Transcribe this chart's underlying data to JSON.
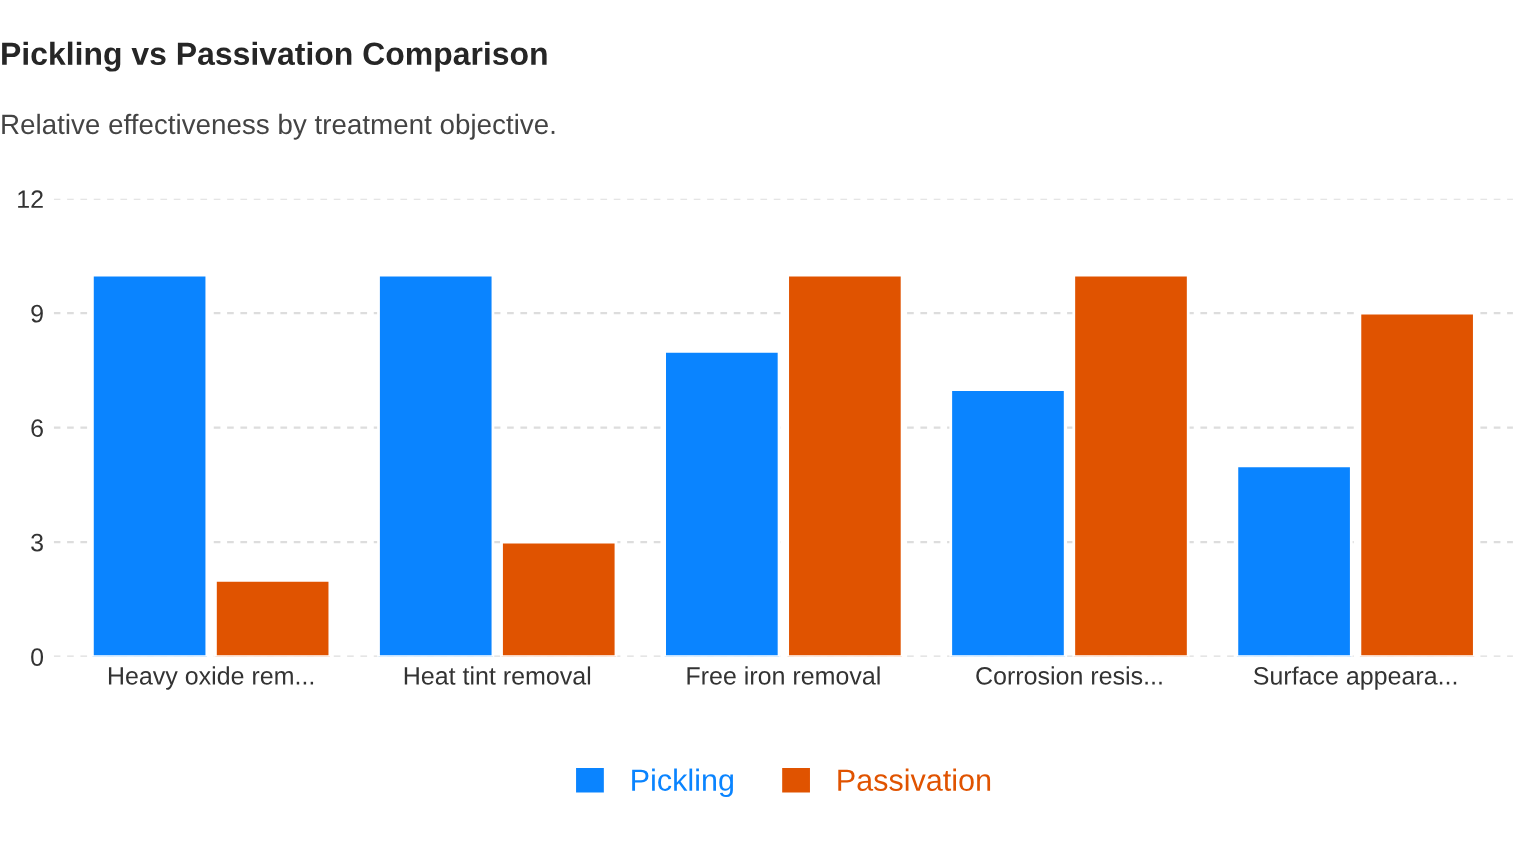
{
  "chart_data": {
    "type": "bar",
    "title": "Pickling vs Passivation Comparison",
    "subtitle": "Relative effectiveness by treatment objective.",
    "categories": [
      "Heavy oxide rem...",
      "Heat tint removal",
      "Free iron removal",
      "Corrosion resis...",
      "Surface appeara..."
    ],
    "series": [
      {
        "name": "Pickling",
        "color": "#0a84ff",
        "values": [
          10,
          10,
          8,
          7,
          5
        ]
      },
      {
        "name": "Passivation",
        "color": "#e05300",
        "values": [
          2,
          3,
          10,
          10,
          9
        ]
      }
    ],
    "ylim": [
      0,
      12
    ],
    "yticks": [
      0,
      3,
      6,
      9,
      12
    ],
    "grid": "y",
    "legend": "bottom"
  }
}
